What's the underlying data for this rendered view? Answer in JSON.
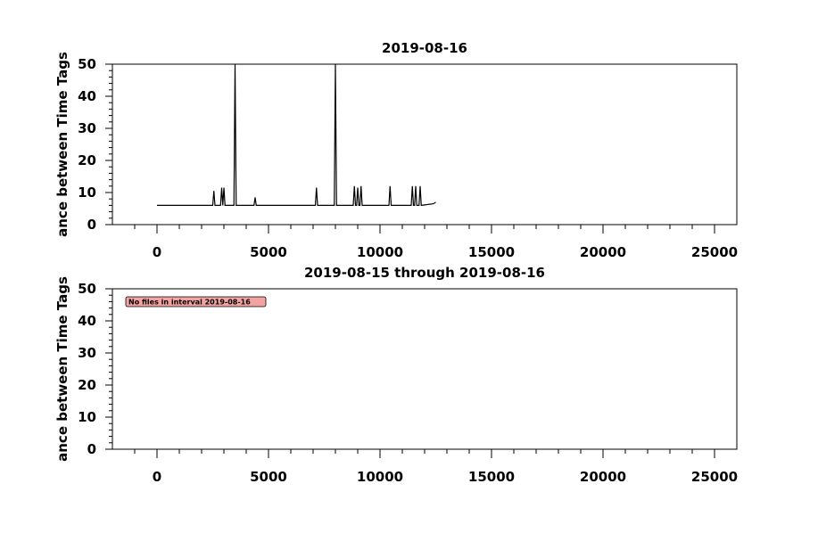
{
  "chart_data": [
    {
      "type": "line",
      "title": "2019-08-16",
      "y_label": "ance between Time Tags",
      "x": [
        0,
        2500,
        2550,
        2600,
        2850,
        2900,
        2950,
        3000,
        3050,
        3450,
        3500,
        3550,
        4350,
        4400,
        4450,
        7100,
        7150,
        7200,
        7950,
        8000,
        8050,
        8800,
        8850,
        8900,
        8950,
        9000,
        9050,
        9100,
        9150,
        9200,
        10400,
        10450,
        10500,
        11400,
        11450,
        11500,
        11550,
        11600,
        11650,
        11750,
        11800,
        11850,
        12400,
        12500
      ],
      "series": [
        {
          "color": "#000000",
          "values": [
            6,
            6,
            10.5,
            6,
            6,
            11.5,
            6,
            11.5,
            6,
            6,
            50,
            6,
            6,
            8.5,
            6,
            6,
            11.5,
            6,
            6,
            50,
            6,
            6,
            12,
            6,
            6,
            11.5,
            6,
            6,
            12,
            6,
            6,
            12,
            6,
            6,
            12,
            6,
            6,
            12,
            6,
            6,
            12,
            6,
            6.5,
            7
          ]
        }
      ],
      "xlim": [
        -2000,
        26000
      ],
      "ylim": [
        0,
        50
      ],
      "xticks": [
        0,
        5000,
        10000,
        15000,
        20000,
        25000
      ],
      "yticks": [
        0,
        10,
        20,
        30,
        40,
        50
      ],
      "xminorticks": [
        -1000,
        1000,
        2000,
        3000,
        4000,
        6000,
        7000,
        8000,
        9000,
        11000,
        12000,
        13000,
        14000,
        16000,
        17000,
        18000,
        19000,
        21000,
        22000,
        23000,
        24000
      ],
      "yminorticks": [
        2,
        4,
        6,
        8,
        12,
        14,
        16,
        18,
        22,
        24,
        26,
        28,
        32,
        34,
        36,
        38,
        42,
        44,
        46,
        48
      ]
    },
    {
      "type": "line",
      "title": "2019-08-15 through 2019-08-16",
      "y_label": "ance between Time Tags",
      "annotation": "No files in interval 2019-08-16",
      "x": [],
      "series": [],
      "xlim": [
        -2000,
        26000
      ],
      "ylim": [
        0,
        50
      ],
      "xticks": [
        0,
        5000,
        10000,
        15000,
        20000,
        25000
      ],
      "yticks": [
        0,
        10,
        20,
        30,
        40,
        50
      ],
      "xminorticks": [
        -1000,
        1000,
        2000,
        3000,
        4000,
        6000,
        7000,
        8000,
        9000,
        11000,
        12000,
        13000,
        14000,
        16000,
        17000,
        18000,
        19000,
        21000,
        22000,
        23000,
        24000
      ],
      "yminorticks": [
        2,
        4,
        6,
        8,
        12,
        14,
        16,
        18,
        22,
        24,
        26,
        28,
        32,
        34,
        36,
        38,
        42,
        44,
        46,
        48
      ]
    }
  ]
}
